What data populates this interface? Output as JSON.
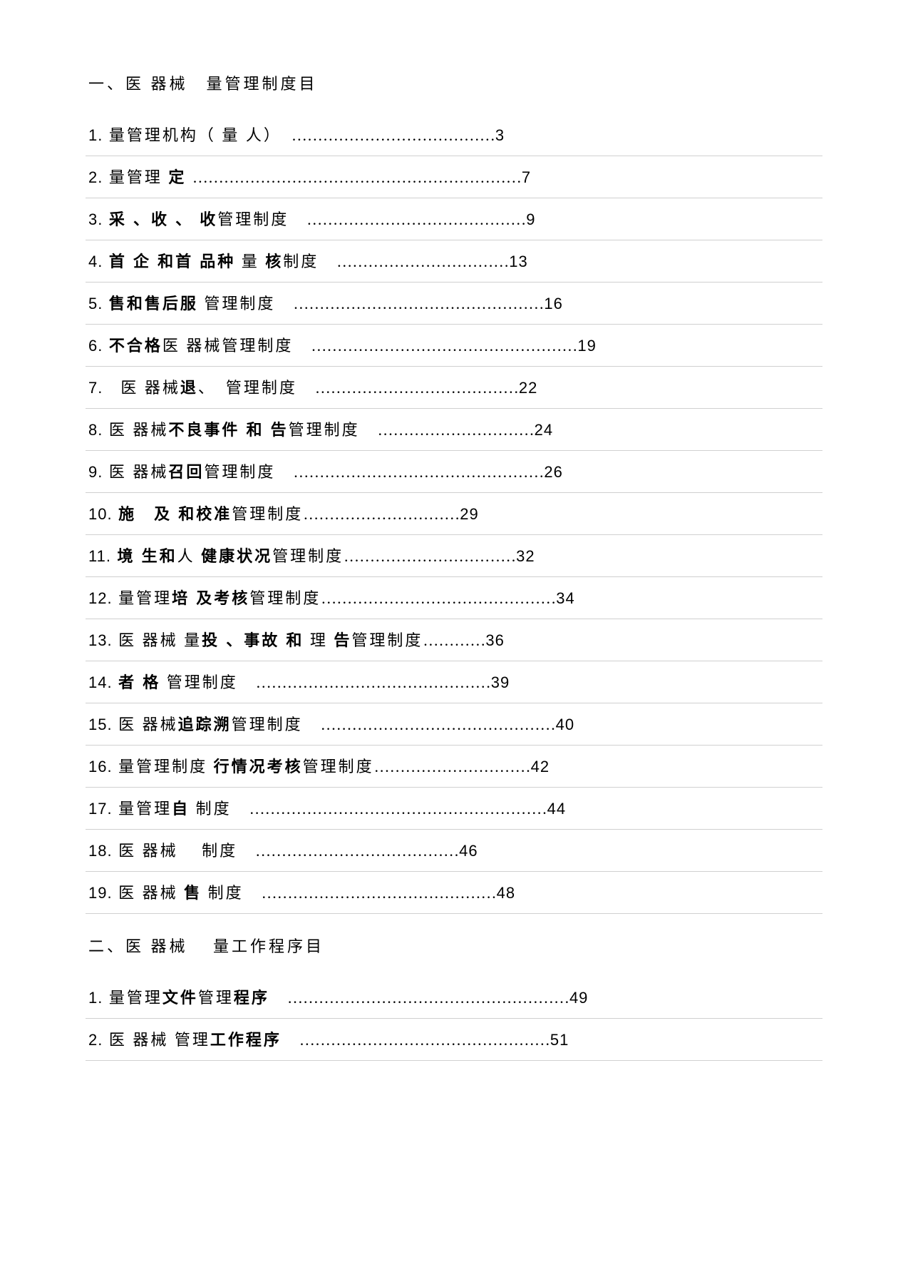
{
  "section1": {
    "header": "一、医 器械　量管理制度目",
    "entries": [
      {
        "num": "1.",
        "prefix": " 量管理机构（ 量 人）　",
        "bold": "",
        "suffix": "",
        "dots": "…………………………………",
        "page": "3"
      },
      {
        "num": "2.",
        "prefix": " 量管理 ",
        "bold": "定",
        "suffix": " ",
        "dots": "………………………………………………………",
        "page": "7"
      },
      {
        "num": "3.",
        "prefix": " ",
        "bold": "采 、收 、 收",
        "suffix": "管理制度　",
        "dots": "……………………………………",
        "page": "9"
      },
      {
        "num": "4.",
        "prefix": " ",
        "bold": "首 企 和首 品种",
        "suffix": " 量 ",
        "dots_prefix": "",
        "bold2": "核",
        "suffix2": "制度　",
        "dots": "……………………………",
        "page": "13"
      },
      {
        "num": "5.",
        "prefix": "  ",
        "bold": "售和售后服",
        "suffix": " 管理制度　",
        "dots": "…………………………………………",
        "page": "16"
      },
      {
        "num": "6.",
        "prefix": " ",
        "bold": "不合格",
        "suffix": "医 器械管理制度　",
        "dots": "……………………………………………",
        "page": "19"
      },
      {
        "num": "7.",
        "prefix": "　医 器械",
        "bold": "退",
        "suffix": "、　管理制度　",
        "dots": "…………………………………",
        "page": "22"
      },
      {
        "num": "8.",
        "prefix": " 医 器械",
        "bold": "不良事件  和 告",
        "suffix": "管理制度　",
        "dots": "…………………………",
        "page": "24"
      },
      {
        "num": "9.",
        "prefix": " 医 器械",
        "bold": "召回",
        "suffix": "管理制度　",
        "dots": "…………………………………………",
        "page": "26"
      },
      {
        "num": "10.",
        "prefix": "  ",
        "bold": "施　及  和校准",
        "suffix": "管理制度",
        "dots": "…………………………",
        "page": "29"
      },
      {
        "num": "11.",
        "prefix": "  ",
        "bold": "境 生和",
        "suffix": "人 ",
        "bold2": "健康状况",
        "suffix2": "管理制度",
        "dots": "……………………………",
        "page": "32"
      },
      {
        "num": "12.",
        "prefix": "  量管理",
        "bold": "培 及考核",
        "suffix": "管理制度",
        "dots": "………………………………………",
        "page": "34"
      },
      {
        "num": "13.",
        "prefix": " 医 器械 量",
        "bold": "投 、事故  和",
        "suffix": " 理 ",
        "bold2": "告",
        "suffix2": "管理制度",
        "dots": "…………",
        "page": "36"
      },
      {
        "num": "14.",
        "prefix": "   ",
        "bold": "者 格",
        "suffix": " 管理制度　",
        "dots": "………………………………………",
        "page": "39"
      },
      {
        "num": "15.",
        "prefix": " 医 器械",
        "bold": "追踪溯",
        "suffix": "管理制度　",
        "dots": "………………………………………",
        "page": "40"
      },
      {
        "num": "16.",
        "prefix": "  量管理制度 ",
        "bold": "行情况考核",
        "suffix": "管理制度",
        "dots": "…………………………",
        "page": "42"
      },
      {
        "num": "17.",
        "prefix": "  量管理",
        "bold": "自",
        "suffix": " 制度　",
        "dots": "…………………………………………………",
        "page": "44"
      },
      {
        "num": "18.",
        "prefix": " 医 器械　 制度　",
        "bold": "",
        "suffix": "",
        "dots": "…………………………………",
        "page": "46"
      },
      {
        "num": "19.",
        "prefix": " 医 器械 ",
        "bold": "售",
        "suffix": " 制度　",
        "dots": "………………………………………",
        "page": "48"
      }
    ]
  },
  "section2": {
    "header_prefix": "二",
    "header_mid": "、医 器械　 量",
    "header_bold": "工作程序",
    "header_suffix": "目",
    "entries": [
      {
        "num": "1.",
        "prefix": " 量管理",
        "bold": "文件",
        "suffix": "管理",
        "bold2": "程序",
        "suffix2": "　",
        "dots": "………………………………………………",
        "page": "49"
      },
      {
        "num": "2.",
        "prefix": " 医 器械 管理",
        "bold": "工作程序",
        "suffix": "　",
        "dots": "…………………………………………",
        "page": "51"
      }
    ]
  }
}
